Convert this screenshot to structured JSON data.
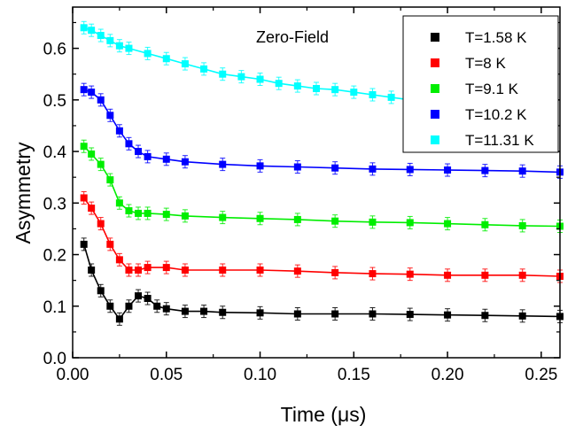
{
  "chart_data": {
    "type": "scatter",
    "title": "",
    "annotation": "Zero-Field",
    "xlabel": "Time (μs)",
    "ylabel": "Asymmetry",
    "xlim": [
      0.0,
      0.26
    ],
    "ylim": [
      0.0,
      0.68
    ],
    "x_ticks": [
      0.0,
      0.05,
      0.1,
      0.15,
      0.2,
      0.25
    ],
    "x_tick_labels": [
      "0.00",
      "0.05",
      "0.10",
      "0.15",
      "0.20",
      "0.25"
    ],
    "y_ticks": [
      0.0,
      0.1,
      0.2,
      0.3,
      0.4,
      0.5,
      0.6
    ],
    "y_tick_labels": [
      "0.0",
      "0.1",
      "0.2",
      "0.3",
      "0.4",
      "0.5",
      "0.6"
    ],
    "grid": false,
    "legend_position": "top-right",
    "marker": "square",
    "error_bars": true,
    "fit_lines": true,
    "series": [
      {
        "name": "T=1.58 K",
        "color": "#000000",
        "x": [
          0.006,
          0.01,
          0.015,
          0.02,
          0.025,
          0.03,
          0.035,
          0.04,
          0.045,
          0.05,
          0.06,
          0.07,
          0.08,
          0.1,
          0.12,
          0.14,
          0.16,
          0.18,
          0.2,
          0.22,
          0.24,
          0.26
        ],
        "y": [
          0.22,
          0.17,
          0.13,
          0.1,
          0.075,
          0.1,
          0.12,
          0.115,
          0.1,
          0.095,
          0.09,
          0.09,
          0.088,
          0.087,
          0.085,
          0.085,
          0.085,
          0.084,
          0.083,
          0.082,
          0.081,
          0.08
        ]
      },
      {
        "name": "T=8 K",
        "color": "#ff0000",
        "x": [
          0.006,
          0.01,
          0.015,
          0.02,
          0.025,
          0.03,
          0.035,
          0.04,
          0.05,
          0.06,
          0.08,
          0.1,
          0.12,
          0.14,
          0.16,
          0.18,
          0.2,
          0.22,
          0.24,
          0.26
        ],
        "y": [
          0.31,
          0.29,
          0.26,
          0.22,
          0.19,
          0.17,
          0.17,
          0.175,
          0.175,
          0.17,
          0.17,
          0.17,
          0.168,
          0.165,
          0.163,
          0.162,
          0.16,
          0.16,
          0.16,
          0.158
        ]
      },
      {
        "name": "T=9.1 K",
        "color": "#00ee00",
        "x": [
          0.006,
          0.01,
          0.015,
          0.02,
          0.025,
          0.03,
          0.035,
          0.04,
          0.05,
          0.06,
          0.08,
          0.1,
          0.12,
          0.14,
          0.16,
          0.18,
          0.2,
          0.22,
          0.24,
          0.26
        ],
        "y": [
          0.41,
          0.395,
          0.375,
          0.345,
          0.3,
          0.285,
          0.28,
          0.28,
          0.278,
          0.275,
          0.272,
          0.27,
          0.268,
          0.265,
          0.263,
          0.262,
          0.26,
          0.258,
          0.256,
          0.255
        ]
      },
      {
        "name": "T=10.2 K",
        "color": "#0000ff",
        "x": [
          0.006,
          0.01,
          0.015,
          0.02,
          0.025,
          0.03,
          0.035,
          0.04,
          0.05,
          0.06,
          0.08,
          0.1,
          0.12,
          0.14,
          0.16,
          0.18,
          0.2,
          0.22,
          0.24,
          0.26
        ],
        "y": [
          0.52,
          0.515,
          0.5,
          0.47,
          0.44,
          0.415,
          0.4,
          0.39,
          0.385,
          0.38,
          0.375,
          0.372,
          0.37,
          0.368,
          0.366,
          0.365,
          0.364,
          0.363,
          0.362,
          0.36
        ]
      },
      {
        "name": "T=11.31 K",
        "color": "#00ffff",
        "x": [
          0.006,
          0.01,
          0.015,
          0.02,
          0.025,
          0.03,
          0.04,
          0.05,
          0.06,
          0.07,
          0.08,
          0.09,
          0.1,
          0.11,
          0.12,
          0.13,
          0.14,
          0.15,
          0.16,
          0.17,
          0.18
        ],
        "y": [
          0.64,
          0.635,
          0.625,
          0.615,
          0.605,
          0.6,
          0.59,
          0.58,
          0.57,
          0.56,
          0.55,
          0.545,
          0.54,
          0.532,
          0.527,
          0.522,
          0.52,
          0.515,
          0.51,
          0.505,
          0.5
        ]
      }
    ]
  }
}
